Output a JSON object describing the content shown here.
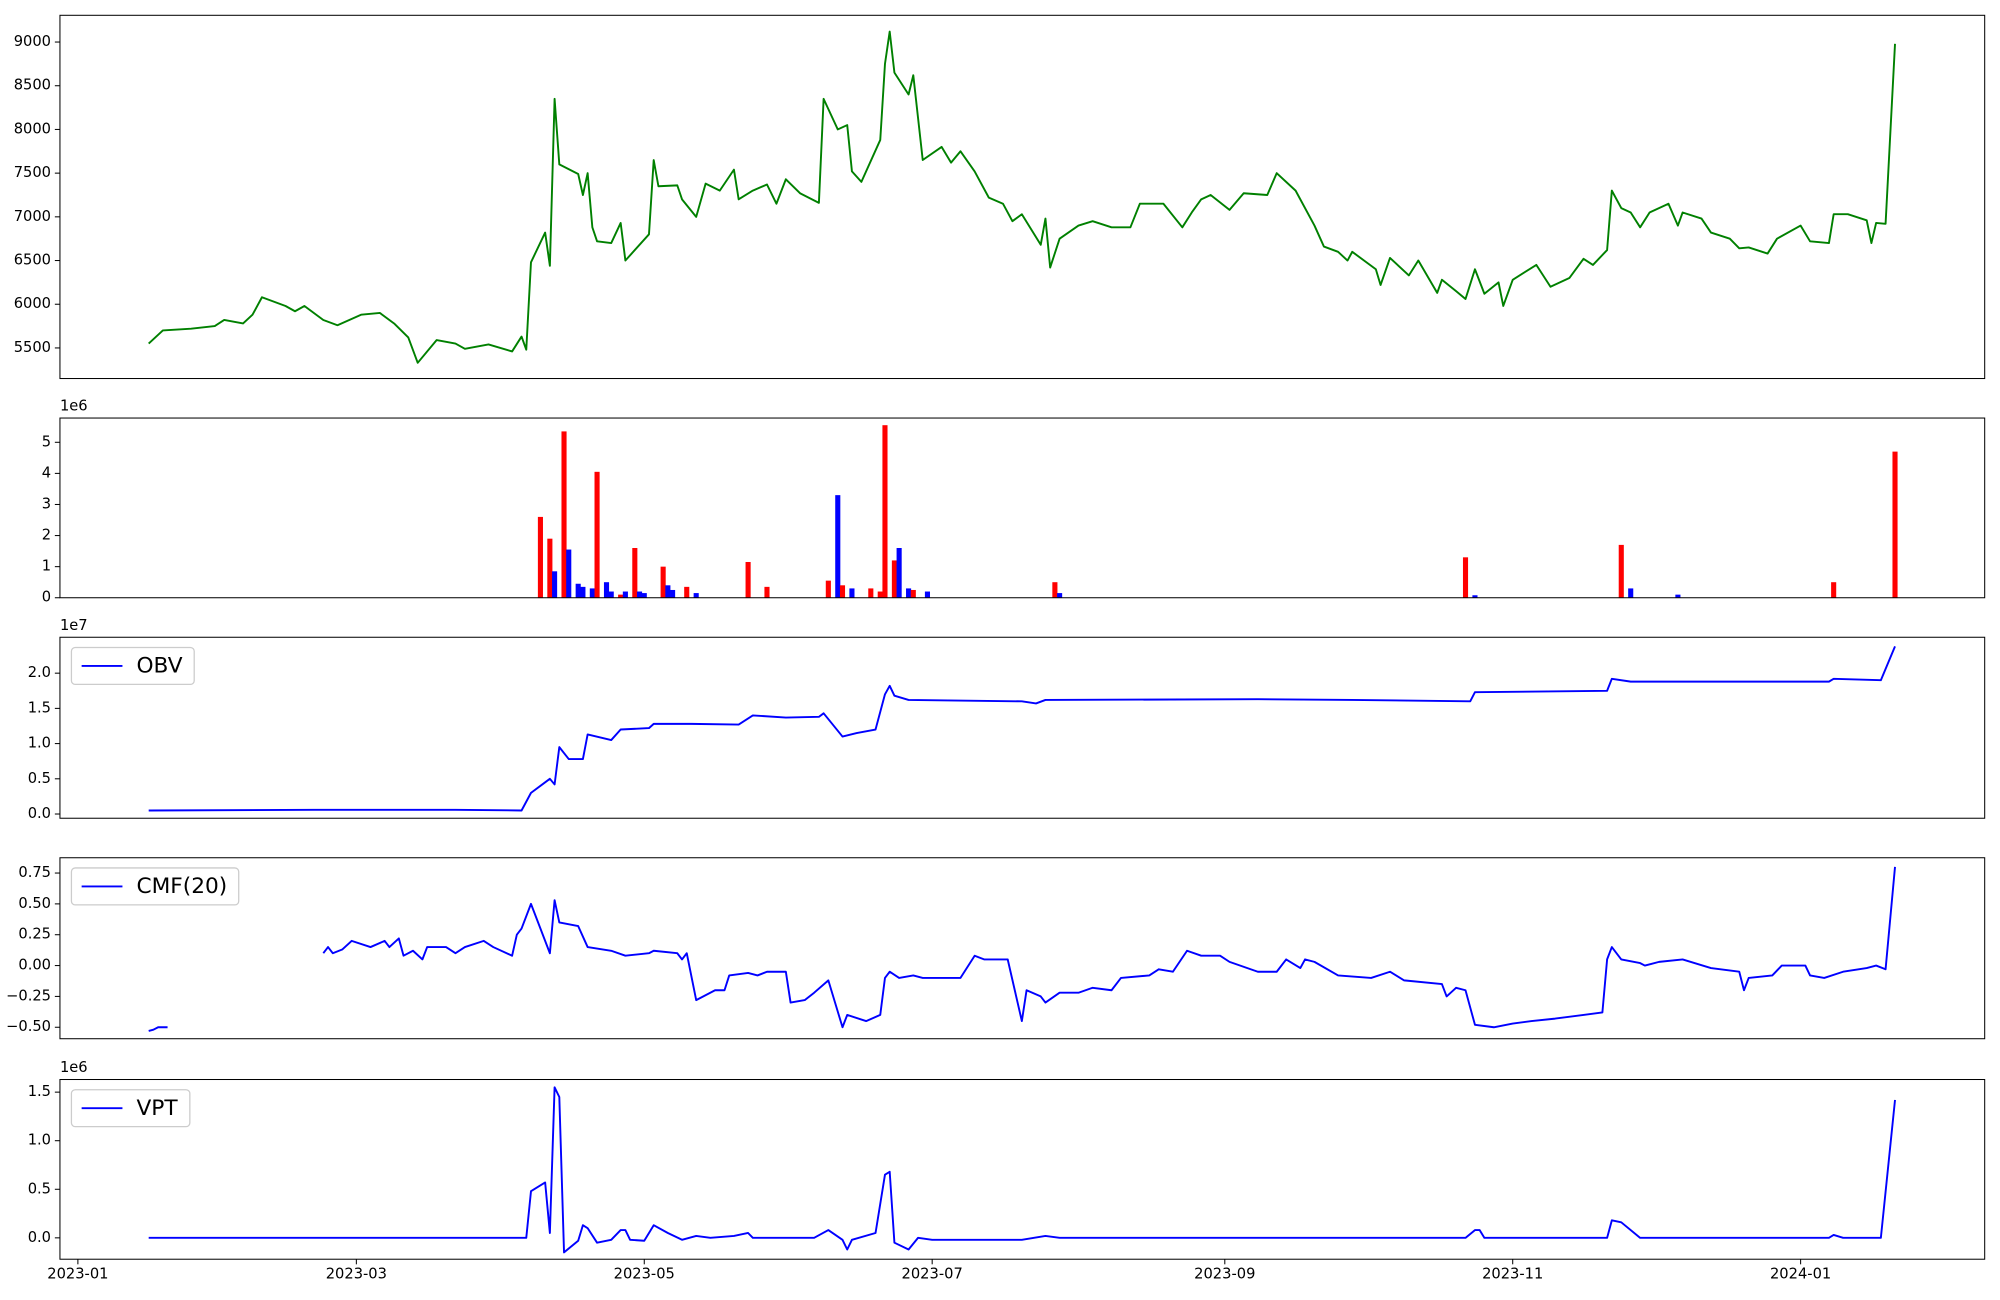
{
  "chart_data": [
    {
      "type": "line",
      "color": "#008000",
      "x": [
        15,
        18,
        24,
        29,
        31,
        35,
        37,
        39,
        44,
        46,
        48,
        52,
        55,
        60,
        64,
        67,
        70,
        72,
        76,
        80,
        82,
        87,
        92,
        94,
        95,
        96,
        99,
        100,
        101,
        102,
        106,
        107,
        108,
        109,
        110,
        113,
        115,
        116,
        121,
        122,
        123,
        127,
        128,
        131,
        133,
        136,
        139,
        140,
        143,
        146,
        148,
        150,
        153,
        157,
        158,
        161,
        163,
        164,
        166,
        170,
        171,
        172,
        173,
        176,
        177,
        179,
        183,
        185,
        187,
        190,
        193,
        196,
        198,
        200,
        204,
        205,
        206,
        208,
        212,
        215,
        219,
        223,
        225,
        230,
        234,
        236,
        238,
        240,
        244,
        247,
        252,
        254,
        258,
        262,
        264,
        267,
        269,
        270,
        275,
        276,
        278,
        282,
        284,
        288,
        289,
        292,
        294,
        296,
        298,
        301,
        302,
        304,
        309,
        312,
        316,
        319,
        321,
        324,
        325,
        327,
        329,
        331,
        333,
        337,
        339,
        340,
        344,
        346,
        350,
        352,
        354,
        358,
        360,
        365,
        367,
        371,
        372,
        375,
        379,
        380,
        381,
        383,
        385
      ],
      "values": [
        5550,
        5700,
        5720,
        5750,
        5820,
        5780,
        5880,
        6080,
        5980,
        5920,
        5980,
        5820,
        5760,
        5880,
        5900,
        5780,
        5620,
        5330,
        5590,
        5550,
        5490,
        5540,
        5460,
        5630,
        5480,
        6480,
        6820,
        6440,
        8350,
        7600,
        7490,
        7250,
        7500,
        6880,
        6720,
        6700,
        6930,
        6500,
        6800,
        7650,
        7350,
        7360,
        7200,
        7000,
        7380,
        7300,
        7540,
        7200,
        7300,
        7370,
        7150,
        7430,
        7270,
        7160,
        8350,
        8000,
        8050,
        7520,
        7400,
        7880,
        8750,
        9120,
        8650,
        8400,
        8620,
        7650,
        7800,
        7620,
        7750,
        7520,
        7220,
        7150,
        6950,
        7030,
        6680,
        6980,
        6420,
        6750,
        6900,
        6950,
        6880,
        6880,
        7150,
        7150,
        6880,
        7050,
        7200,
        7250,
        7080,
        7270,
        7250,
        7500,
        7300,
        6900,
        6660,
        6600,
        6500,
        6600,
        6400,
        6220,
        6530,
        6330,
        6500,
        6130,
        6280,
        6150,
        6060,
        6400,
        6120,
        6250,
        5980,
        6280,
        6450,
        6200,
        6300,
        6520,
        6450,
        6620,
        7300,
        7100,
        7050,
        6880,
        7050,
        7150,
        6900,
        7050,
        6980,
        6820,
        6750,
        6640,
        6650,
        6580,
        6750,
        6900,
        6720,
        6700,
        7030,
        7030,
        6960,
        6700,
        6930,
        6920,
        8980
      ],
      "xlim": [
        -3.8,
        404
      ],
      "ylim": [
        5150,
        9306
      ],
      "yticks": [
        5500,
        6000,
        6500,
        7000,
        7500,
        8000,
        8500,
        9000
      ]
    },
    {
      "type": "bar",
      "y_offset_label": "1e6",
      "x": [
        98,
        100,
        101,
        103,
        104,
        106,
        107,
        109,
        110,
        112,
        113,
        115,
        116,
        118,
        119,
        120,
        124,
        125,
        126,
        129,
        131,
        142,
        146,
        159,
        161,
        162,
        164,
        168,
        170,
        171,
        173,
        174,
        176,
        177,
        180,
        207,
        208,
        294,
        296,
        327,
        329,
        339,
        372,
        385
      ],
      "values": [
        2.6,
        1.9,
        0.85,
        5.35,
        1.55,
        0.45,
        0.35,
        0.3,
        4.05,
        0.5,
        0.2,
        0.1,
        0.2,
        1.6,
        0.2,
        0.15,
        1.0,
        0.4,
        0.25,
        0.35,
        0.15,
        1.15,
        0.35,
        0.55,
        3.3,
        0.4,
        0.3,
        0.3,
        0.2,
        5.55,
        1.2,
        1.6,
        0.3,
        0.25,
        0.2,
        0.5,
        0.15,
        1.3,
        0.08,
        1.7,
        0.3,
        0.1,
        0.5,
        4.7
      ],
      "colors": [
        "red",
        "red",
        "blue",
        "red",
        "blue",
        "blue",
        "blue",
        "blue",
        "red",
        "blue",
        "blue",
        "red",
        "blue",
        "red",
        "blue",
        "blue",
        "red",
        "blue",
        "blue",
        "red",
        "blue",
        "red",
        "red",
        "red",
        "blue",
        "red",
        "blue",
        "red",
        "red",
        "red",
        "red",
        "blue",
        "blue",
        "red",
        "blue",
        "red",
        "blue",
        "red",
        "blue",
        "red",
        "blue",
        "blue",
        "red",
        "red"
      ],
      "xlim": [
        -3.8,
        404
      ],
      "ylim": [
        0,
        5.78
      ],
      "yticks": [
        0,
        1,
        2,
        3,
        4,
        5
      ]
    },
    {
      "type": "line",
      "y_offset_label": "1e7",
      "legend": "upper left",
      "x": [
        15,
        50,
        80,
        94,
        96,
        99,
        100,
        101,
        102,
        104,
        107,
        108,
        113,
        115,
        121,
        122,
        130,
        140,
        143,
        150,
        157,
        158,
        162,
        165,
        169,
        171,
        172,
        173,
        176,
        200,
        203,
        205,
        250,
        270,
        295,
        296,
        324,
        325,
        329,
        371,
        372,
        382,
        385
      ],
      "series": [
        {
          "name": "OBV",
          "color": "#0000ff",
          "values": [
            0.05,
            0.06,
            0.06,
            0.05,
            0.3,
            0.45,
            0.5,
            0.42,
            0.95,
            0.78,
            0.78,
            1.13,
            1.05,
            1.2,
            1.22,
            1.28,
            1.28,
            1.27,
            1.4,
            1.37,
            1.38,
            1.43,
            1.1,
            1.15,
            1.2,
            1.7,
            1.82,
            1.68,
            1.62,
            1.6,
            1.57,
            1.62,
            1.63,
            1.62,
            1.6,
            1.73,
            1.75,
            1.92,
            1.88,
            1.88,
            1.92,
            1.9,
            2.38
          ]
        }
      ],
      "xlim": [
        -3.8,
        404
      ],
      "ylim": [
        -0.06,
        2.51
      ],
      "yticks": [
        {
          "value": 0,
          "label": "0.0"
        },
        {
          "value": 0.5,
          "label": "0.5"
        },
        {
          "value": 1,
          "label": "1.0"
        },
        {
          "value": 1.5,
          "label": "1.5"
        },
        {
          "value": 2,
          "label": "2.0"
        }
      ]
    },
    {
      "type": "line",
      "legend": "upper left",
      "x": [
        15,
        16,
        17,
        19,
        35,
        52,
        53,
        54,
        56,
        58,
        62,
        65,
        66,
        68,
        69,
        71,
        73,
        74,
        78,
        80,
        82,
        86,
        88,
        92,
        93,
        94,
        96,
        100,
        101,
        102,
        106,
        108,
        113,
        116,
        121,
        122,
        127,
        128,
        129,
        131,
        135,
        137,
        138,
        142,
        144,
        146,
        150,
        151,
        154,
        156,
        159,
        162,
        163,
        167,
        170,
        171,
        172,
        174,
        177,
        179,
        187,
        190,
        192,
        197,
        200,
        201,
        204,
        205,
        208,
        212,
        215,
        219,
        221,
        227,
        229,
        232,
        235,
        238,
        242,
        244,
        250,
        254,
        256,
        259,
        260,
        262,
        267,
        274,
        278,
        281,
        289,
        290,
        292,
        294,
        296,
        300,
        304,
        308,
        313,
        319,
        323,
        324,
        325,
        327,
        331,
        332,
        335,
        340,
        346,
        352,
        353,
        354,
        359,
        361,
        366,
        367,
        370,
        374,
        379,
        381,
        383,
        385
      ],
      "series": [
        {
          "name": "CMF(20)",
          "color": "#0000ff",
          "values": [
            -0.53,
            -0.52,
            -0.5,
            -0.5,
            null,
            0.1,
            0.15,
            0.1,
            0.13,
            0.2,
            0.15,
            0.2,
            0.15,
            0.22,
            0.08,
            0.12,
            0.05,
            0.15,
            0.15,
            0.1,
            0.15,
            0.2,
            0.15,
            0.08,
            0.25,
            0.3,
            0.5,
            0.1,
            0.53,
            0.35,
            0.32,
            0.15,
            0.12,
            0.08,
            0.1,
            0.12,
            0.1,
            0.05,
            0.1,
            -0.28,
            -0.2,
            -0.2,
            -0.08,
            -0.06,
            -0.08,
            -0.05,
            -0.05,
            -0.3,
            -0.28,
            -0.22,
            -0.12,
            -0.5,
            -0.4,
            -0.45,
            -0.4,
            -0.1,
            -0.05,
            -0.1,
            -0.08,
            -0.1,
            -0.1,
            0.08,
            0.05,
            0.05,
            -0.45,
            -0.2,
            -0.25,
            -0.3,
            -0.22,
            -0.22,
            -0.18,
            -0.2,
            -0.1,
            -0.08,
            -0.03,
            -0.05,
            0.12,
            0.08,
            0.08,
            0.03,
            -0.05,
            -0.05,
            0.05,
            -0.02,
            0.05,
            0.03,
            -0.08,
            -0.1,
            -0.05,
            -0.12,
            -0.15,
            -0.25,
            -0.18,
            -0.2,
            -0.48,
            -0.5,
            -0.47,
            -0.45,
            -0.43,
            -0.4,
            -0.38,
            0.05,
            0.15,
            0.05,
            0.02,
            0.0,
            0.03,
            0.05,
            -0.02,
            -0.05,
            -0.2,
            -0.1,
            -0.08,
            0.0,
            0.0,
            -0.08,
            -0.1,
            -0.05,
            -0.02,
            0.0,
            -0.03,
            0.8
          ]
        }
      ],
      "xlim": [
        -3.8,
        404
      ],
      "ylim": [
        -0.593,
        0.874
      ],
      "yticks": [
        {
          "value": -0.5,
          "label": "−0.50"
        },
        {
          "value": -0.25,
          "label": "−0.25"
        },
        {
          "value": 0,
          "label": "0.00"
        },
        {
          "value": 0.25,
          "label": "0.25"
        },
        {
          "value": 0.5,
          "label": "0.50"
        },
        {
          "value": 0.75,
          "label": "0.75"
        }
      ]
    },
    {
      "type": "line",
      "y_offset_label": "1e6",
      "legend": "upper left",
      "x": [
        15,
        95,
        96,
        99,
        100,
        101,
        102,
        103,
        106,
        107,
        108,
        110,
        113,
        115,
        116,
        117,
        120,
        122,
        125,
        128,
        131,
        134,
        139,
        142,
        143,
        156,
        159,
        162,
        163,
        164,
        169,
        171,
        172,
        173,
        176,
        178,
        181,
        200,
        205,
        208,
        294,
        296,
        297,
        298,
        324,
        325,
        327,
        331,
        371,
        372,
        374,
        382,
        385
      ],
      "series": [
        {
          "name": "VPT",
          "color": "#0000ff",
          "values": [
            0,
            0,
            0.48,
            0.57,
            0.05,
            1.55,
            1.45,
            -0.15,
            -0.03,
            0.13,
            0.1,
            -0.05,
            -0.02,
            0.08,
            0.08,
            -0.02,
            -0.03,
            0.13,
            0.05,
            -0.02,
            0.02,
            0,
            0.02,
            0.05,
            0,
            0,
            0.08,
            -0.02,
            -0.12,
            -0.02,
            0.05,
            0.65,
            0.68,
            -0.05,
            -0.12,
            0,
            -0.02,
            -0.02,
            0.02,
            0,
            0,
            0.08,
            0.08,
            0,
            0,
            0.18,
            0.16,
            0,
            0,
            0.03,
            0,
            0,
            1.42
          ]
        }
      ],
      "xlim": [
        -3.8,
        404
      ],
      "ylim": [
        -0.22,
        1.63
      ],
      "yticks": [
        {
          "value": 0,
          "label": "0.0"
        },
        {
          "value": 0.5,
          "label": "0.5"
        },
        {
          "value": 1,
          "label": "1.0"
        },
        {
          "value": 1.5,
          "label": "1.5"
        }
      ],
      "xticks": [
        {
          "value": 0,
          "label": "2023-01"
        },
        {
          "value": 59,
          "label": "2023-03"
        },
        {
          "value": 120,
          "label": "2023-05"
        },
        {
          "value": 181,
          "label": "2023-07"
        },
        {
          "value": 243,
          "label": "2023-09"
        },
        {
          "value": 304,
          "label": "2023-11"
        },
        {
          "value": 365,
          "label": "2024-01"
        }
      ]
    }
  ]
}
